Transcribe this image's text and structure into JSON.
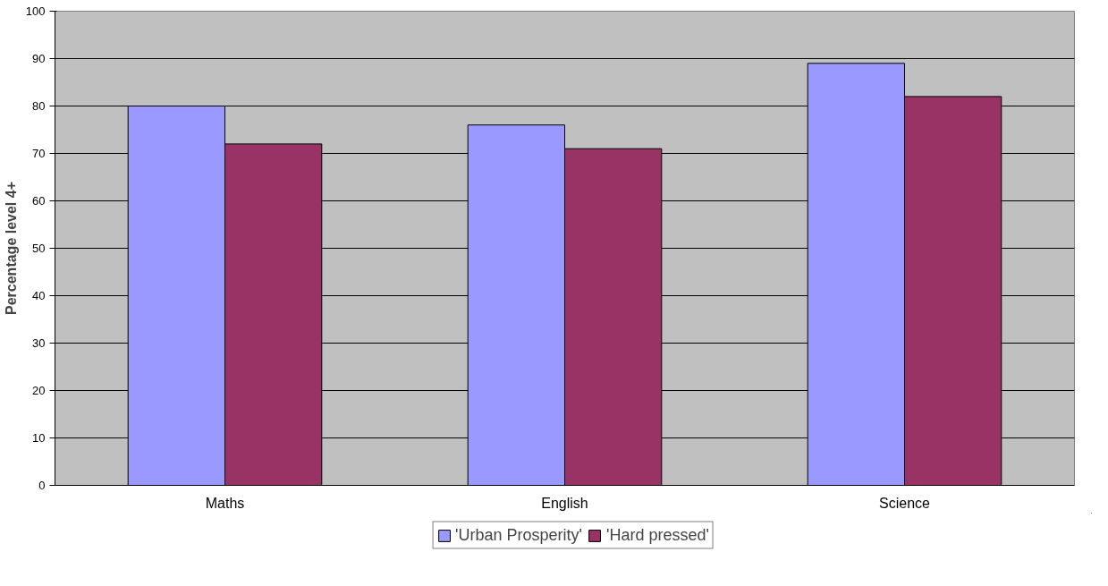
{
  "chart_data": {
    "type": "bar",
    "ylabel": "Percentage level 4+",
    "categories": [
      "Maths",
      "English",
      "Science"
    ],
    "series": [
      {
        "name": "'Urban Prosperity'",
        "color": "#9999ff",
        "values": [
          80,
          76,
          89
        ]
      },
      {
        "name": "'Hard pressed'",
        "color": "#993366",
        "values": [
          72,
          71,
          82
        ]
      }
    ],
    "ylim": [
      0,
      100
    ],
    "yticks": [
      0,
      10,
      20,
      30,
      40,
      50,
      60,
      70,
      80,
      90,
      100
    ],
    "grid": "y",
    "legend": "bottom"
  }
}
